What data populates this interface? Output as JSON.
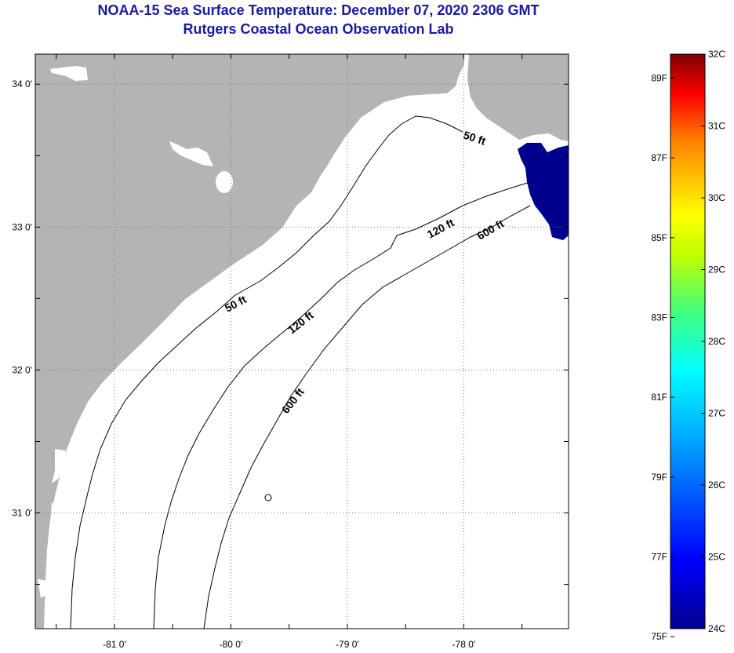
{
  "header": {
    "title": "NOAA-15 Sea Surface Temperature:  December 07, 2020 2306 GMT",
    "subtitle": "Rutgers Coastal Ocean Observation Lab"
  },
  "map": {
    "colors": {
      "land": "#b4b4b4",
      "ocean": "#ffffff",
      "cloud": "#ffffff",
      "sst_cold": "#00008f"
    },
    "x_ticks": [
      {
        "value": -81,
        "label": "-81 0'"
      },
      {
        "value": -80,
        "label": "-80 0'"
      },
      {
        "value": -79,
        "label": "-79 0'"
      },
      {
        "value": -78,
        "label": "-78 0'"
      }
    ],
    "y_ticks": [
      {
        "value": 34,
        "label": "34 0'"
      },
      {
        "value": 33,
        "label": "33 0'"
      },
      {
        "value": 32,
        "label": "32 0'"
      },
      {
        "value": 31,
        "label": "31 0'"
      }
    ],
    "lon_range": [
      -81.68,
      -77.1
    ],
    "lat_range": [
      30.19,
      34.21
    ],
    "gridlines": true,
    "isobaths": [
      {
        "label": "50 ft",
        "depth_ft": 50
      },
      {
        "label": "50 ft",
        "depth_ft": 50
      },
      {
        "label": "120 ft",
        "depth_ft": 120
      },
      {
        "label": "120 ft",
        "depth_ft": 120
      },
      {
        "label": "600 ft",
        "depth_ft": 600
      },
      {
        "label": "600 ft",
        "depth_ft": 600
      }
    ]
  },
  "colorbar": {
    "fahrenheit": [
      "75F",
      "77F",
      "79F",
      "81F",
      "83F",
      "85F",
      "87F",
      "89F"
    ],
    "celsius": [
      "24C",
      "25C",
      "26C",
      "27C",
      "28C",
      "29C",
      "30C",
      "31C",
      "32C"
    ],
    "range_c": [
      24,
      32
    ]
  }
}
